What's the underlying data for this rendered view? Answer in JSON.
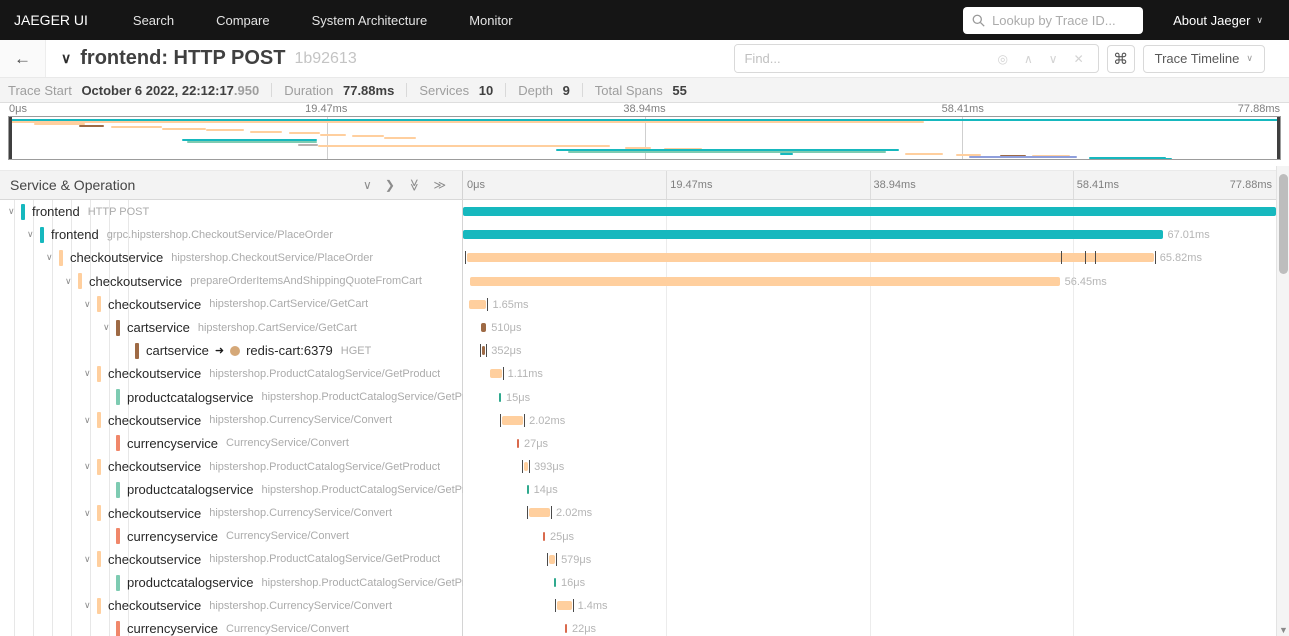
{
  "nav": {
    "brand": "JAEGER UI",
    "items": [
      "Search",
      "Compare",
      "System Architecture",
      "Monitor"
    ],
    "lookup_placeholder": "Lookup by Trace ID...",
    "about_label": "About Jaeger",
    "about_chevron": "∨"
  },
  "header": {
    "back_icon": "←",
    "collapse_chevron": "∨",
    "title": "frontend: HTTP POST",
    "trace_id": "1b92613",
    "find_placeholder": "Find...",
    "find_icons": [
      {
        "name": "match-target-icon",
        "glyph": "◎"
      },
      {
        "name": "prev-match-icon",
        "glyph": "∧"
      },
      {
        "name": "next-match-icon",
        "glyph": "∨"
      },
      {
        "name": "clear-find-icon",
        "glyph": "✕"
      }
    ],
    "shortcuts_icon": "⌘",
    "view_selector_label": "Trace Timeline",
    "view_selector_chevron": "∨"
  },
  "summary": {
    "items": [
      {
        "label": "Trace Start",
        "value": "October 6 2022, 22:12:17",
        "suffix": ".950"
      },
      {
        "label": "Duration",
        "value": "77.88ms"
      },
      {
        "label": "Services",
        "value": "10"
      },
      {
        "label": "Depth",
        "value": "9"
      },
      {
        "label": "Total Spans",
        "value": "55"
      }
    ]
  },
  "minimap": {
    "ticks": [
      "0μs",
      "19.47ms",
      "38.94ms",
      "58.41ms",
      "77.88ms"
    ],
    "segments": [
      [
        0,
        1.5,
        100,
        "teal"
      ],
      [
        0,
        4,
        72,
        "orange"
      ],
      [
        2,
        6,
        4,
        "orange"
      ],
      [
        5.5,
        7.5,
        2,
        "brown"
      ],
      [
        8,
        9,
        4,
        "orange"
      ],
      [
        12,
        10.5,
        3.5,
        "orange"
      ],
      [
        15.5,
        12,
        3,
        "orange"
      ],
      [
        19,
        13.5,
        2.5,
        "orange"
      ],
      [
        22,
        15,
        2.5,
        "orange"
      ],
      [
        24.5,
        16.5,
        2,
        "orange"
      ],
      [
        27,
        18,
        2.5,
        "orange"
      ],
      [
        29.5,
        19.5,
        2.5,
        "orange"
      ],
      [
        13.6,
        22,
        10.6,
        "teal"
      ],
      [
        14,
        24,
        10.2,
        "green"
      ],
      [
        22.7,
        26.5,
        1.6,
        "grayseg"
      ],
      [
        24.3,
        28,
        23,
        "orange"
      ],
      [
        48.5,
        29.5,
        2,
        "orange"
      ],
      [
        51.5,
        30.5,
        3,
        "orange"
      ],
      [
        43,
        32,
        27,
        "teal"
      ],
      [
        44,
        34,
        25,
        "green"
      ],
      [
        60.7,
        36,
        1,
        "teal"
      ],
      [
        70.5,
        35.5,
        3,
        "orange"
      ],
      [
        74.5,
        36.5,
        2,
        "orange"
      ],
      [
        78,
        37.5,
        2,
        "brown"
      ],
      [
        80.5,
        38,
        3,
        "orange"
      ],
      [
        75.5,
        38.5,
        8.5,
        "blue"
      ],
      [
        85,
        39.5,
        6,
        "teal"
      ],
      [
        86.5,
        41,
        5,
        "teal"
      ],
      [
        88,
        42.2,
        11,
        "teal"
      ]
    ]
  },
  "timeline": {
    "left_header": "Service & Operation",
    "header_icons": [
      {
        "name": "collapse-one-icon",
        "glyph": "∨",
        "rotate": false
      },
      {
        "name": "expand-one-icon",
        "glyph": "❯",
        "rotate": false
      },
      {
        "name": "collapse-all-icon",
        "glyph": "≫",
        "rotate": true
      },
      {
        "name": "expand-all-icon",
        "glyph": "≫",
        "rotate": false
      }
    ],
    "ticks": [
      "0μs",
      "19.47ms",
      "38.94ms",
      "58.41ms",
      "77.88ms"
    ],
    "total_ms": 77.88,
    "row_chevron": "∨",
    "peer_arrow": "➜"
  },
  "colors": {
    "teal": "#16b8be",
    "orange": "#ffcf9e",
    "brown": "#9e6a45",
    "green": "#7ecbb2",
    "salmon": "#f0876a",
    "blue": "#8f9fdc",
    "grayseg": "#b9b2b2",
    "redis_dot": "#d5a878",
    "tick_green": "#2fa98e",
    "tick_salmon": "#d96a4d",
    "tick_teal": "#16a8ae"
  },
  "spans": [
    {
      "level": 0,
      "service": "frontend",
      "operation": "HTTP POST",
      "color": "teal",
      "has_children": true,
      "start_ms": 0,
      "duration_ms": 77.88,
      "label": ""
    },
    {
      "level": 1,
      "service": "frontend",
      "operation": "grpc.hipstershop.CheckoutService/PlaceOrder",
      "color": "teal",
      "has_children": true,
      "start_ms": 0,
      "duration_ms": 67.01,
      "label": "67.01ms"
    },
    {
      "level": 2,
      "service": "checkoutservice",
      "operation": "hipstershop.CheckoutService/PlaceOrder",
      "color": "orange",
      "has_children": true,
      "start_ms": 0.35,
      "duration_ms": 65.82,
      "label": "65.82ms",
      "tick_start": true,
      "tick_end": true,
      "log_ticks_ms": [
        57.3,
        59.6,
        60.5
      ]
    },
    {
      "level": 3,
      "service": "checkoutservice",
      "operation": "prepareOrderItemsAndShippingQuoteFromCart",
      "color": "orange",
      "has_children": true,
      "start_ms": 0.7,
      "duration_ms": 56.45,
      "label": "56.45ms"
    },
    {
      "level": 4,
      "service": "checkoutservice",
      "operation": "hipstershop.CartService/GetCart",
      "color": "orange",
      "has_children": true,
      "start_ms": 0.6,
      "duration_ms": 1.65,
      "label": "1.65ms",
      "tick_end": true
    },
    {
      "level": 5,
      "service": "cartservice",
      "operation": "hipstershop.CartService/GetCart",
      "color": "brown",
      "has_children": true,
      "start_ms": 1.72,
      "duration_ms": 0.51,
      "label": "510μs"
    },
    {
      "level": 6,
      "service": "cartservice",
      "peer": "redis-cart:6379",
      "operation": "HGET",
      "color": "brown",
      "has_children": false,
      "start_ms": 1.78,
      "duration_ms": 0.352,
      "label": "352μs",
      "tick_start": true,
      "tick_end": true
    },
    {
      "level": 4,
      "service": "checkoutservice",
      "operation": "hipstershop.ProductCatalogService/GetProduct",
      "color": "orange",
      "has_children": true,
      "start_ms": 2.59,
      "duration_ms": 1.11,
      "label": "1.11ms",
      "tick_end": true
    },
    {
      "level": 5,
      "service": "productcatalogservice",
      "operation": "hipstershop.ProductCatalogService/GetProduct",
      "color": "green",
      "bar_color": "tick_green",
      "has_children": false,
      "start_ms": 3.45,
      "duration_ms": 0.015,
      "label": "15μs"
    },
    {
      "level": 4,
      "service": "checkoutservice",
      "operation": "hipstershop.CurrencyService/Convert",
      "color": "orange",
      "has_children": true,
      "start_ms": 3.74,
      "duration_ms": 2.02,
      "label": "2.02ms",
      "tick_start": true,
      "tick_end": true
    },
    {
      "level": 5,
      "service": "currencyservice",
      "operation": "CurrencyService/Convert",
      "color": "salmon",
      "bar_color": "tick_salmon",
      "has_children": false,
      "start_ms": 5.17,
      "duration_ms": 0.027,
      "label": "27μs"
    },
    {
      "level": 4,
      "service": "checkoutservice",
      "operation": "hipstershop.ProductCatalogService/GetProduct",
      "color": "orange",
      "has_children": true,
      "start_ms": 5.84,
      "duration_ms": 0.393,
      "label": "393μs",
      "tick_start": true,
      "tick_end": true
    },
    {
      "level": 5,
      "service": "productcatalogservice",
      "operation": "hipstershop.ProductCatalogService/GetProduct",
      "color": "green",
      "bar_color": "tick_green",
      "has_children": false,
      "start_ms": 6.1,
      "duration_ms": 0.014,
      "label": "14μs"
    },
    {
      "level": 4,
      "service": "checkoutservice",
      "operation": "hipstershop.CurrencyService/Convert",
      "color": "orange",
      "has_children": true,
      "start_ms": 6.32,
      "duration_ms": 2.02,
      "label": "2.02ms",
      "tick_start": true,
      "tick_end": true
    },
    {
      "level": 5,
      "service": "currencyservice",
      "operation": "CurrencyService/Convert",
      "color": "salmon",
      "bar_color": "tick_salmon",
      "has_children": false,
      "start_ms": 7.66,
      "duration_ms": 0.025,
      "label": "25μs"
    },
    {
      "level": 4,
      "service": "checkoutservice",
      "operation": "hipstershop.ProductCatalogService/GetProduct",
      "color": "orange",
      "has_children": true,
      "start_ms": 8.24,
      "duration_ms": 0.579,
      "label": "579μs",
      "tick_start": true,
      "tick_end": true
    },
    {
      "level": 5,
      "service": "productcatalogservice",
      "operation": "hipstershop.ProductCatalogService/GetProduct",
      "color": "green",
      "bar_color": "tick_green",
      "has_children": false,
      "start_ms": 8.72,
      "duration_ms": 0.016,
      "label": "16μs"
    },
    {
      "level": 4,
      "service": "checkoutservice",
      "operation": "hipstershop.CurrencyService/Convert",
      "color": "orange",
      "has_children": true,
      "start_ms": 9.0,
      "duration_ms": 1.4,
      "label": "1.4ms",
      "tick_start": true,
      "tick_end": true
    },
    {
      "level": 5,
      "service": "currencyservice",
      "operation": "CurrencyService/Convert",
      "color": "salmon",
      "bar_color": "tick_salmon",
      "has_children": false,
      "start_ms": 9.77,
      "duration_ms": 0.022,
      "label": "22μs"
    }
  ]
}
